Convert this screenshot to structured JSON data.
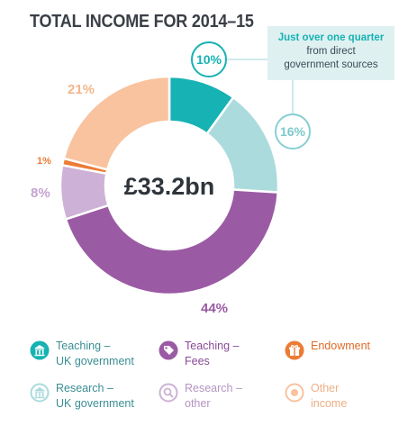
{
  "title": "TOTAL INCOME FOR 2014–15",
  "callout": {
    "strong": "Just over one quarter",
    "rest_line1": "from direct",
    "rest_line2": "government sources"
  },
  "chart_data": {
    "type": "pie",
    "title": "TOTAL INCOME FOR 2014–15",
    "center_label": "£33.2bn",
    "slices": [
      {
        "name": "Teaching – UK government",
        "value": 10,
        "label": "10%",
        "color": "#17b2b3"
      },
      {
        "name": "Research – UK government",
        "value": 16,
        "label": "16%",
        "color": "#abdbdd"
      },
      {
        "name": "Teaching – Fees",
        "value": 44,
        "label": "44%",
        "color": "#9b5aa4"
      },
      {
        "name": "Research – other",
        "value": 8,
        "label": "8%",
        "color": "#cdb1d6"
      },
      {
        "name": "Endowment",
        "value": 1,
        "label": "1%",
        "color": "#ec7c35"
      },
      {
        "name": "Other income",
        "value": 21,
        "label": "21%",
        "color": "#f8c39e"
      }
    ]
  },
  "legend": [
    {
      "line1": "Teaching –",
      "line2": "UK government",
      "color": "#17b2b3",
      "text_color": "#3a8e93",
      "icon": "building-icon",
      "icon_style": "solid"
    },
    {
      "line1": "Teaching –",
      "line2": "Fees",
      "color": "#9b5aa4",
      "text_color": "#8a4b96",
      "icon": "tag-icon",
      "icon_style": "solid"
    },
    {
      "line1": "Endowment",
      "line2": "",
      "color": "#ec7c35",
      "text_color": "#e06c28",
      "icon": "gift-icon",
      "icon_style": "solid"
    },
    {
      "line1": "Research –",
      "line2": "UK government",
      "color": "#abdbdd",
      "text_color": "#3a8e93",
      "icon": "building-icon",
      "icon_style": "light"
    },
    {
      "line1": "Research –",
      "line2": "other",
      "color": "#cdb1d6",
      "text_color": "#b595c3",
      "icon": "search-icon",
      "icon_style": "light"
    },
    {
      "line1": "Other",
      "line2": "income",
      "color": "#f8c39e",
      "text_color": "#efaf86",
      "icon": "circle-icon",
      "icon_style": "light"
    }
  ]
}
